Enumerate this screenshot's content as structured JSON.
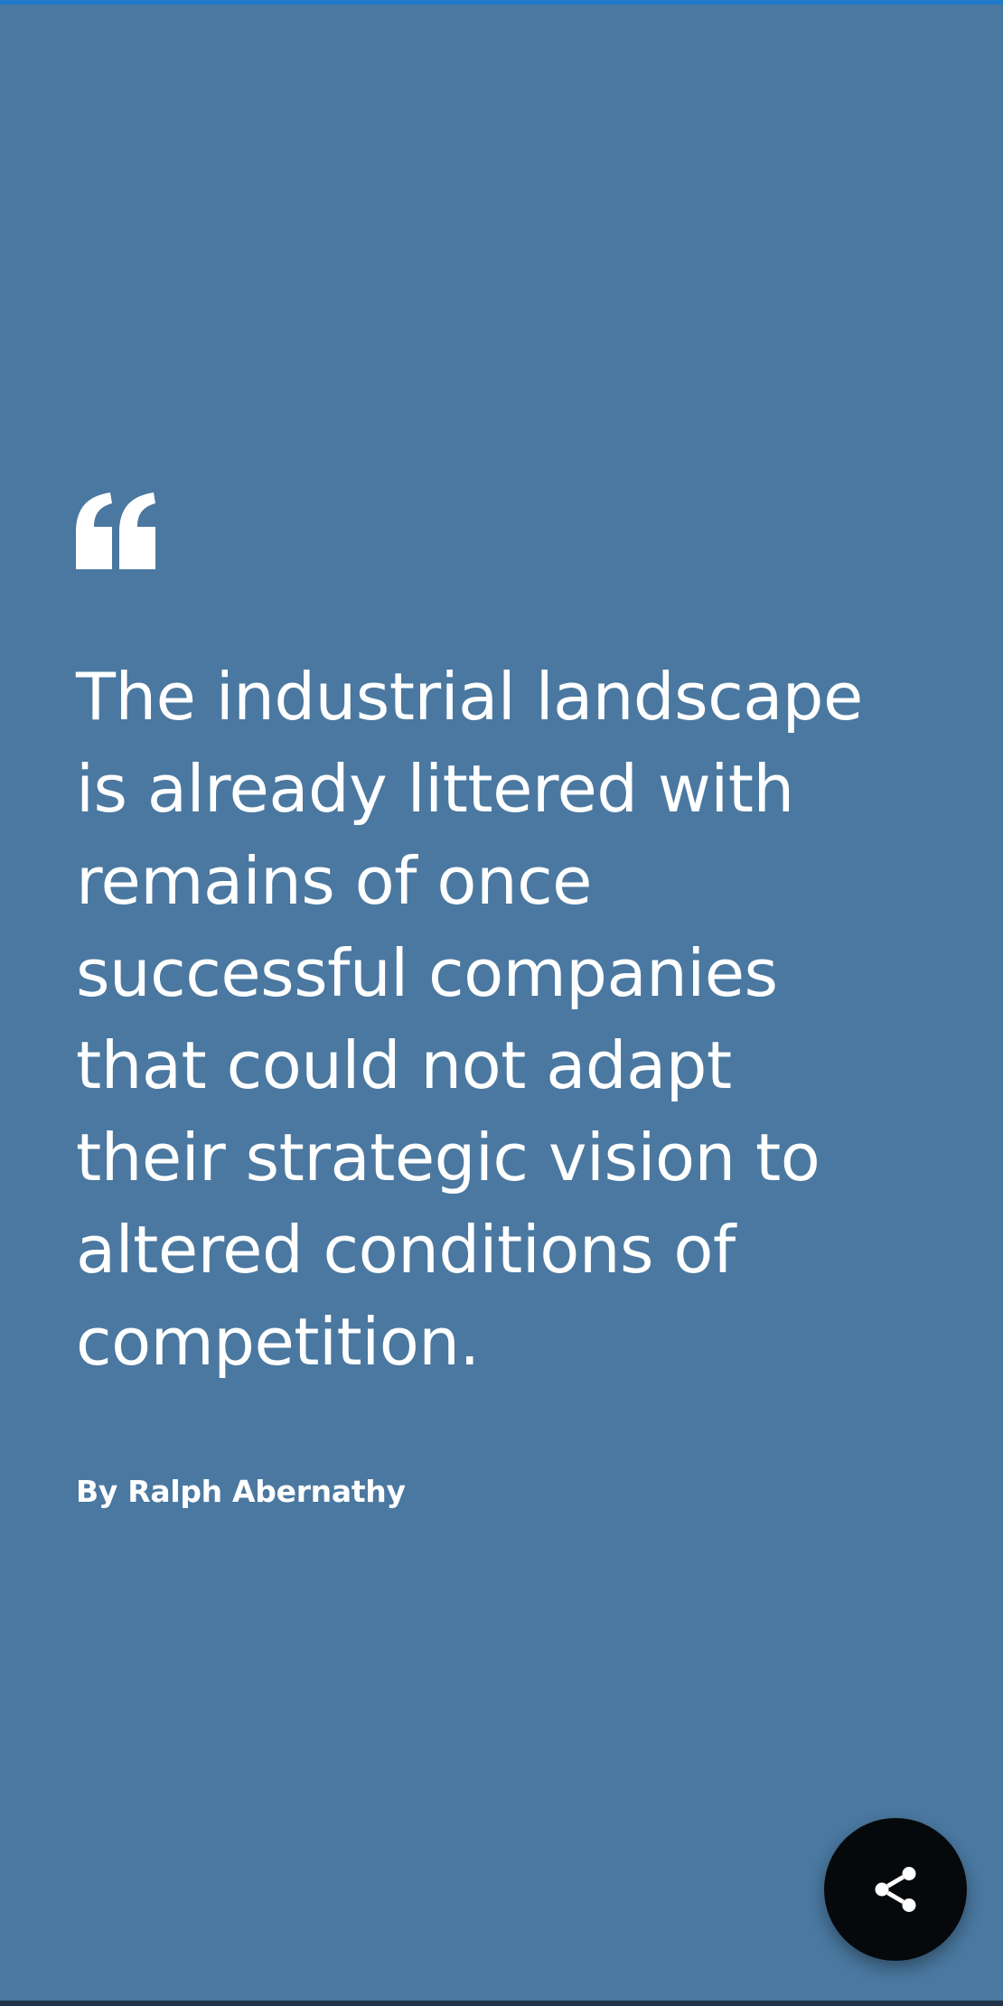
{
  "quote": {
    "lines": [
      "The industrial landscape",
      "is already littered with",
      "remains of once",
      "successful companies",
      "that could not adapt",
      "their strategic vision to",
      "altered conditions of",
      "competition."
    ],
    "author": "By Ralph Abernathy",
    "quote_icon": "quote-mark-icon"
  },
  "share": {
    "icon": "share-icon"
  },
  "colors": {
    "background": "#4a78a0",
    "top_accent": "#1f78c8",
    "button_bg": "#06090c",
    "text": "#ffffff"
  }
}
